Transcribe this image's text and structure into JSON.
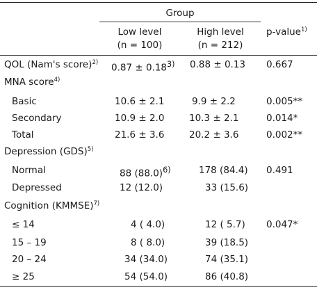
{
  "header": {
    "group_label": "Group",
    "low_level_label": "Low level",
    "low_level_n": "(n = 100)",
    "high_level_label": "High level",
    "high_level_n": "(n = 212)",
    "pvalue_label": "p-value",
    "pvalue_note": "1)"
  },
  "rows": {
    "qol": {
      "label": "QOL (Nam's score)",
      "note": "2)",
      "low": "0.87 ± 0.18",
      "low_note": "3)",
      "high": "0.88 ± 0.13",
      "p": "0.667"
    },
    "mna": {
      "label": "MNA score",
      "note": "4)"
    },
    "mna_basic": {
      "label": "Basic",
      "low": "10.6 ± 2.1",
      "high": "9.9 ± 2.2",
      "p": "0.005**"
    },
    "mna_secondary": {
      "label": "Secondary",
      "low": "10.9 ± 2.0",
      "high": "10.3 ± 2.1",
      "p": "0.014*"
    },
    "mna_total": {
      "label": "Total",
      "low": "21.6 ± 3.6",
      "high": "20.2 ± 3.6",
      "p": "0.002**"
    },
    "depression": {
      "label": "Depression (GDS)",
      "note": "5)"
    },
    "dep_normal": {
      "label": "Normal",
      "low": "88 (88.0)",
      "low_note": "6)",
      "high": "178 (84.4)",
      "p": "0.491"
    },
    "dep_depressed": {
      "label": "Depressed",
      "low": "12 (12.0)",
      "high": "33 (15.6)"
    },
    "cognition": {
      "label": "Cognition (KMMSE)",
      "note": "7)"
    },
    "cog_le14": {
      "label": "≤ 14",
      "low": "4 ( 4.0)",
      "high": "12 ( 5.7)",
      "p": "0.047*"
    },
    "cog_15_19": {
      "label": "15 – 19",
      "low": "8 ( 8.0)",
      "high": "39 (18.5)"
    },
    "cog_20_24": {
      "label": "20 – 24",
      "low": "34 (34.0)",
      "high": "74 (35.1)"
    },
    "cog_ge25": {
      "label": "≥ 25",
      "low": "54 (54.0)",
      "high": "86 (40.8)"
    }
  }
}
